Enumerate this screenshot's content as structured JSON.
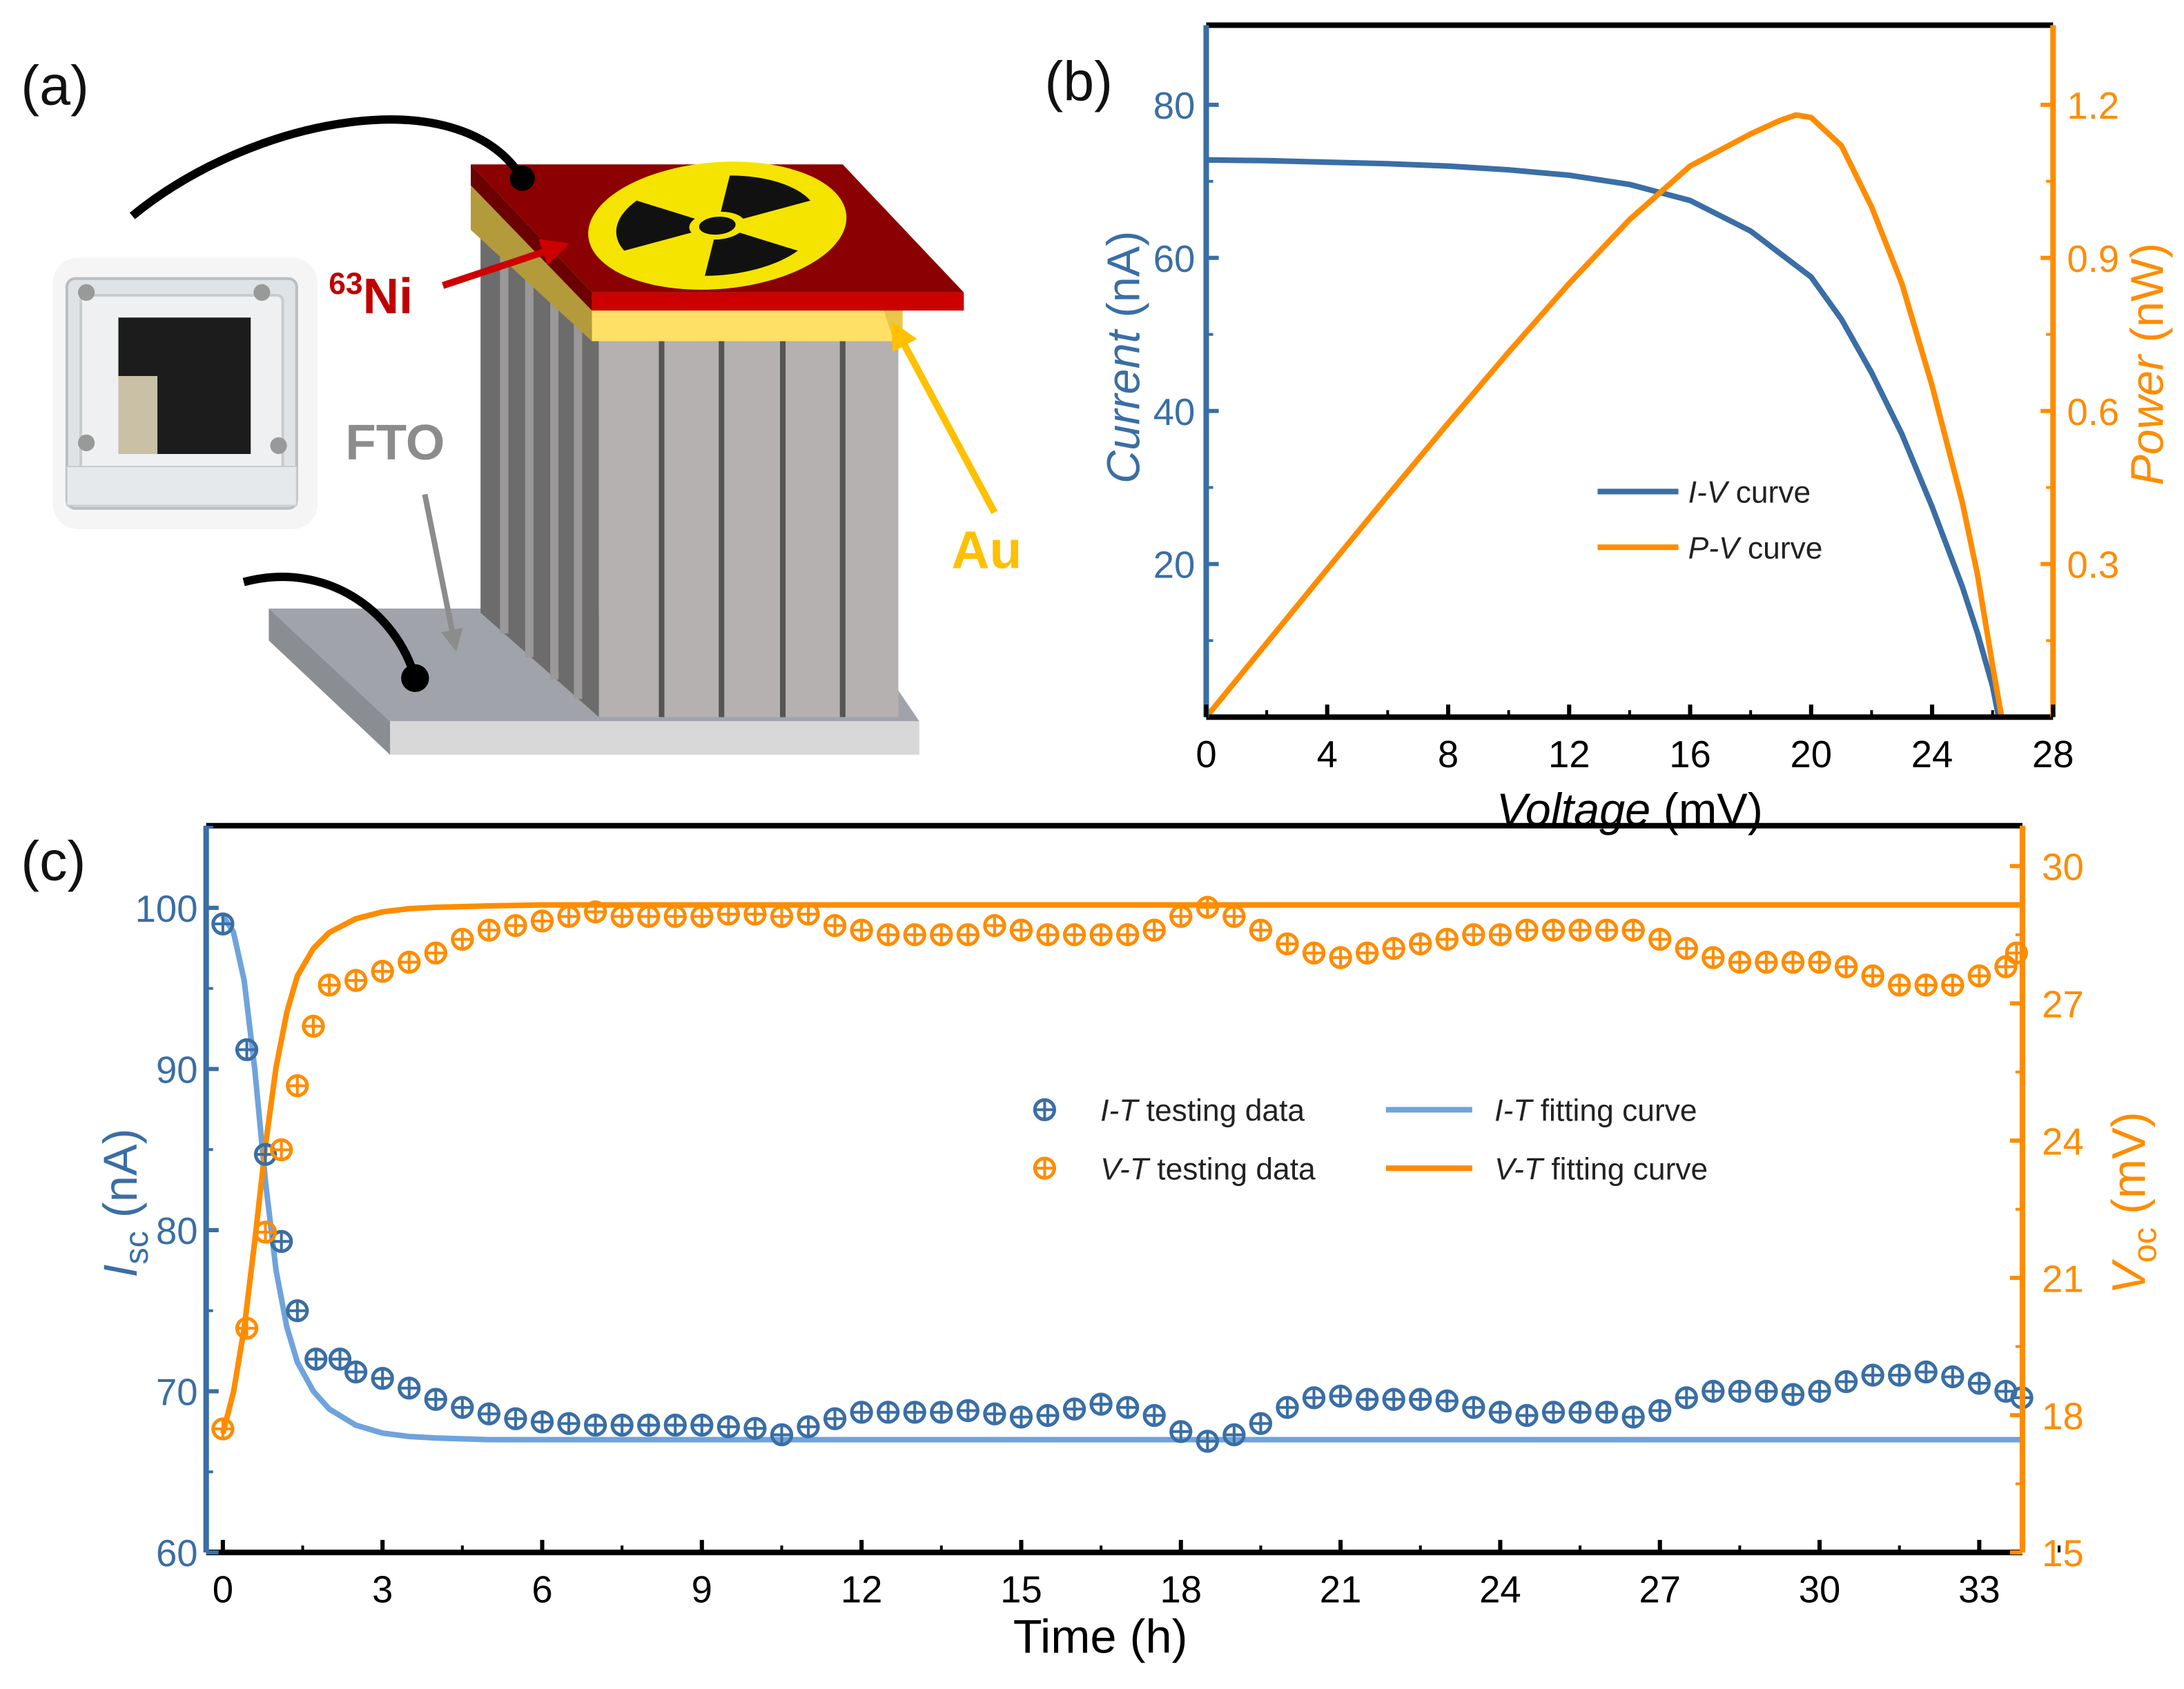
{
  "panels": {
    "a": "(a)",
    "b": "(b)",
    "c": "(c)"
  },
  "diagram": {
    "ni_label_sup": "63",
    "ni_label": "Ni",
    "fto_label": "FTO",
    "au_label": "Au",
    "icons": [
      "radiation-icon",
      "device-photo"
    ]
  },
  "colors": {
    "blue": "#3a6ea5",
    "lightblue": "#6fa3dc",
    "orange": "#ff8c00",
    "ni_red": "#c00000",
    "au_yellow": "#ffc000",
    "fto_gray": "#8c8c8c"
  },
  "chart_data": [
    {
      "type": "line",
      "title": "",
      "xlabel": "Voltage (mV)",
      "xlabel_italic": "Voltage",
      "xlabel_unit": " (mV)",
      "ylabel": "Current (nA)",
      "ylabel_italic": "Current",
      "ylabel_unit": " (nA)",
      "y2label": "Power (nW)",
      "y2label_italic": "Power",
      "y2label_unit": " (nW)",
      "xlim": [
        0,
        28
      ],
      "ylim": [
        0,
        90.4
      ],
      "y2lim": [
        0,
        1.356
      ],
      "xticks": [
        "0",
        "4",
        "8",
        "12",
        "16",
        "20",
        "24",
        "28"
      ],
      "yticks": [
        "20",
        "40",
        "60",
        "80"
      ],
      "y2ticks": [
        "0.3",
        "0.6",
        "0.9",
        "1.2"
      ],
      "legend_position": "center-right",
      "series": [
        {
          "name": "I-V curve",
          "name_italic": "I-V",
          "name_rest": " curve",
          "axis": "left",
          "x": [
            0,
            2,
            4,
            6,
            8,
            10,
            12,
            14,
            16,
            18,
            19,
            20,
            21,
            22,
            23,
            24,
            25,
            25.5,
            26,
            26.2
          ],
          "y": [
            72.8,
            72.7,
            72.5,
            72.3,
            72.0,
            71.5,
            70.8,
            69.6,
            67.5,
            63.5,
            60.5,
            57.5,
            52,
            45,
            37,
            27.5,
            17,
            11,
            4,
            0
          ]
        },
        {
          "name": "P-V curve",
          "name_italic": "P-V",
          "name_rest": " curve",
          "axis": "right",
          "x": [
            0,
            2,
            4,
            6,
            8,
            10,
            12,
            14,
            16,
            18,
            19,
            19.5,
            20,
            21,
            22,
            23,
            24,
            25,
            25.5,
            26,
            26.3
          ],
          "y": [
            0,
            0.145,
            0.29,
            0.434,
            0.576,
            0.715,
            0.85,
            0.975,
            1.08,
            1.143,
            1.17,
            1.18,
            1.175,
            1.12,
            1.0,
            0.85,
            0.65,
            0.42,
            0.28,
            0.1,
            0
          ]
        }
      ]
    },
    {
      "type": "scatter",
      "title": "",
      "xlabel": "Time (h)",
      "ylabel": "Isc (nA)",
      "ylabel_main": "I",
      "ylabel_sub": "sc",
      "ylabel_unit": " (nA)",
      "y2label": "Voc (mV)",
      "y2label_main": "V",
      "y2label_sub": "oc",
      "y2label_unit": " (mV)",
      "xlim": [
        -0.3,
        33.8
      ],
      "ylim": [
        60,
        105
      ],
      "y2lim": [
        15,
        30.9
      ],
      "xticks": [
        "0",
        "3",
        "6",
        "9",
        "12",
        "15",
        "18",
        "21",
        "24",
        "27",
        "30",
        "33"
      ],
      "yticks": [
        "60",
        "70",
        "80",
        "90",
        "100"
      ],
      "y2ticks": [
        "15",
        "18",
        "21",
        "24",
        "27",
        "30"
      ],
      "legend_position": "center",
      "series": [
        {
          "name": "I-T testing data",
          "name_italic": "I-T",
          "name_rest": " testing data",
          "kind": "markers",
          "axis": "left",
          "x": [
            0,
            0.45,
            0.8,
            1.1,
            1.4,
            1.75,
            2.2,
            2.5,
            3,
            3.5,
            4,
            4.5,
            5,
            5.5,
            6,
            6.5,
            7,
            7.5,
            8,
            8.5,
            9,
            9.5,
            10,
            10.5,
            11,
            11.5,
            12,
            12.5,
            13,
            13.5,
            14,
            14.5,
            15,
            15.5,
            16,
            16.5,
            17,
            17.5,
            18,
            18.5,
            19,
            19.5,
            20,
            20.5,
            21,
            21.5,
            22,
            22.5,
            23,
            23.5,
            24,
            24.5,
            25,
            25.5,
            26,
            26.5,
            27,
            27.5,
            28,
            28.5,
            29,
            29.5,
            30,
            30.5,
            31,
            31.5,
            32,
            32.5,
            33,
            33.5,
            33.8
          ],
          "y": [
            99,
            91.2,
            84.7,
            79.3,
            75,
            72,
            72,
            71.2,
            70.8,
            70.2,
            69.5,
            69,
            68.6,
            68.3,
            68.1,
            68,
            67.9,
            67.9,
            67.9,
            67.9,
            67.9,
            67.8,
            67.7,
            67.3,
            67.8,
            68.3,
            68.7,
            68.7,
            68.7,
            68.7,
            68.8,
            68.6,
            68.4,
            68.5,
            68.9,
            69.2,
            69,
            68.5,
            67.5,
            66.9,
            67.3,
            68,
            69,
            69.6,
            69.7,
            69.5,
            69.5,
            69.5,
            69.4,
            69,
            68.7,
            68.5,
            68.7,
            68.7,
            68.7,
            68.4,
            68.8,
            69.6,
            70,
            70,
            70,
            69.8,
            70,
            70.6,
            71,
            71,
            71.2,
            70.9,
            70.5,
            70,
            69.6
          ]
        },
        {
          "name": "V-T testing data",
          "name_italic": "V-T",
          "name_rest": " testing data",
          "kind": "markers",
          "axis": "right",
          "x": [
            0,
            0.45,
            0.8,
            1.1,
            1.4,
            1.7,
            2,
            2.5,
            3,
            3.5,
            4,
            4.5,
            5,
            5.5,
            6,
            6.5,
            7,
            7.5,
            8,
            8.5,
            9,
            9.5,
            10,
            10.5,
            11,
            11.5,
            12,
            12.5,
            13,
            13.5,
            14,
            14.5,
            15,
            15.5,
            16,
            16.5,
            17,
            17.5,
            18,
            18.5,
            19,
            19.5,
            20,
            20.5,
            21,
            21.5,
            22,
            22.5,
            23,
            23.5,
            24,
            24.5,
            25,
            25.5,
            26,
            26.5,
            27,
            27.5,
            28,
            28.5,
            29,
            29.5,
            30,
            30.5,
            31,
            31.5,
            32,
            32.5,
            33,
            33.5,
            33.7
          ],
          "y": [
            17.7,
            19.9,
            22,
            23.8,
            25.2,
            26.5,
            27.4,
            27.5,
            27.7,
            27.9,
            28.1,
            28.4,
            28.6,
            28.7,
            28.8,
            28.9,
            29,
            28.9,
            28.9,
            28.9,
            28.9,
            28.95,
            28.95,
            28.9,
            28.95,
            28.7,
            28.6,
            28.5,
            28.5,
            28.5,
            28.5,
            28.7,
            28.6,
            28.5,
            28.5,
            28.5,
            28.5,
            28.6,
            28.9,
            29.1,
            28.9,
            28.6,
            28.3,
            28.1,
            28,
            28.1,
            28.2,
            28.3,
            28.4,
            28.5,
            28.5,
            28.6,
            28.6,
            28.6,
            28.6,
            28.6,
            28.4,
            28.2,
            28,
            27.9,
            27.9,
            27.9,
            27.9,
            27.8,
            27.6,
            27.4,
            27.4,
            27.4,
            27.6,
            27.8,
            28.1
          ]
        },
        {
          "name": "I-T fitting curve",
          "name_italic": "I-T",
          "name_rest": " fitting curve",
          "kind": "line",
          "axis": "left",
          "x": [
            0,
            0.2,
            0.4,
            0.6,
            0.8,
            1.0,
            1.2,
            1.4,
            1.7,
            2,
            2.5,
            3,
            3.5,
            4,
            5,
            6,
            8,
            33.8
          ],
          "y": [
            99.5,
            98.5,
            95.5,
            90,
            83,
            77.5,
            74,
            71.8,
            70,
            68.9,
            67.9,
            67.4,
            67.2,
            67.1,
            67,
            67,
            67,
            67
          ]
        },
        {
          "name": "V-T fitting curve",
          "name_italic": "V-T",
          "name_rest": " fitting curve",
          "kind": "line",
          "axis": "right",
          "x": [
            0,
            0.2,
            0.4,
            0.6,
            0.8,
            1.0,
            1.2,
            1.4,
            1.7,
            2,
            2.5,
            3,
            3.5,
            4,
            5,
            6,
            8,
            33.8
          ],
          "y": [
            17.6,
            18.5,
            19.9,
            21.8,
            23.9,
            25.6,
            26.8,
            27.6,
            28.2,
            28.55,
            28.85,
            29.0,
            29.07,
            29.1,
            29.13,
            29.15,
            29.15,
            29.15
          ]
        }
      ]
    }
  ]
}
